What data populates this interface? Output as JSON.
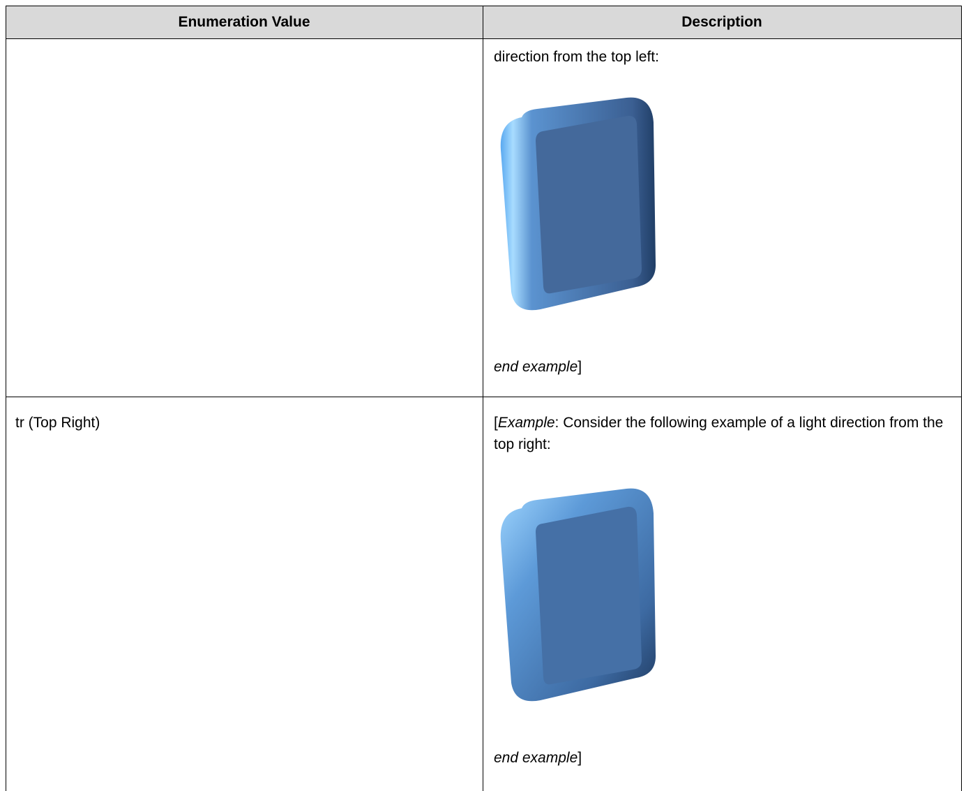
{
  "table": {
    "header": [
      "Enumeration Value",
      "Description"
    ],
    "rows": [
      {
        "description": {
          "text": "direction from the top left:",
          "end": [
            "end example",
            "]"
          ]
        }
      },
      {
        "value": "tr (Top Right)",
        "description": {
          "intro": [
            "[",
            "Example",
            ":  Consider the following example of a light direction from the top right:"
          ],
          "end": [
            "end example",
            "]"
          ]
        }
      }
    ]
  }
}
